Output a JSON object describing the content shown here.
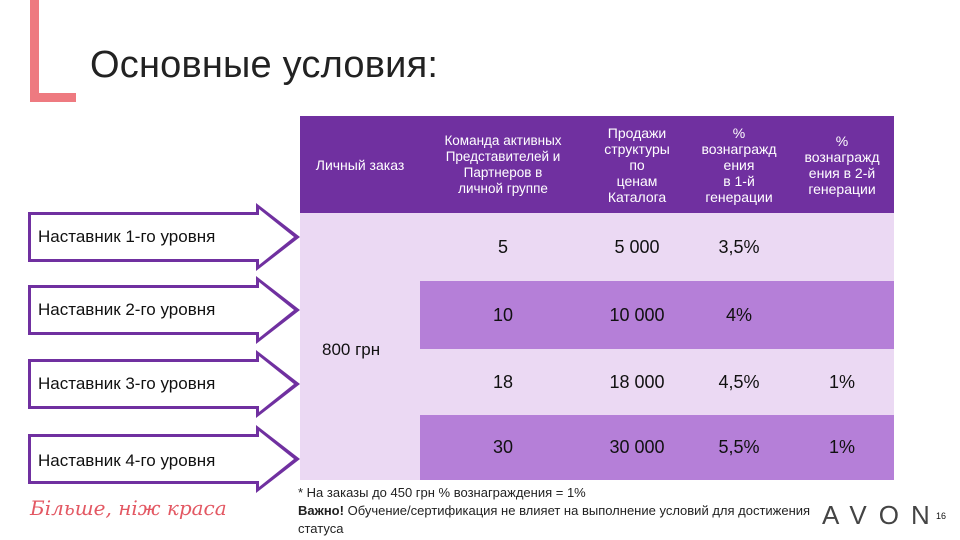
{
  "slide": {
    "title": "Основные условия:",
    "page_number": "16"
  },
  "table": {
    "headers": {
      "personal_order": "Личный заказ",
      "team": "Команда активных\nПредставителей и\nПартнеров в\nличной группе",
      "sales": "Продажи\nструктуры\nпо\nценам\nКаталога",
      "reward_gen1": "%\nвознагражд\nения\nв 1-й\nгенерации",
      "reward_gen2": "%\nвознагражд\nения в 2-й\nгенерации"
    },
    "personal_order_value": "800 грн",
    "rows": [
      {
        "level": "Наставник 1-го уровня",
        "team": "5",
        "sales": "5 000",
        "gen1": "3,5%",
        "gen2": ""
      },
      {
        "level": "Наставник 2-го уровня",
        "team": "10",
        "sales": "10 000",
        "gen1": "4%",
        "gen2": ""
      },
      {
        "level": "Наставник 3-го уровня",
        "team": "18",
        "sales": "18 000",
        "gen1": "4,5%",
        "gen2": "1%"
      },
      {
        "level": "Наставник 4-го уровня",
        "team": "30",
        "sales": "30 000",
        "gen1": "5,5%",
        "gen2": "1%"
      }
    ]
  },
  "footnote": {
    "line1": "* На заказы до 450 грн % вознаграждения = 1%",
    "important_label": "Важно!",
    "line2": " Обучение/сертификация не влияет на выполнение условий для достижения статуса"
  },
  "slogan": "Більше, ніж краса",
  "brand": "AVON",
  "colors": {
    "header_purple": "#7030a0",
    "row_light": "#ebd9f3",
    "row_mid": "#b57fd8",
    "accent_coral": "#e35863"
  }
}
